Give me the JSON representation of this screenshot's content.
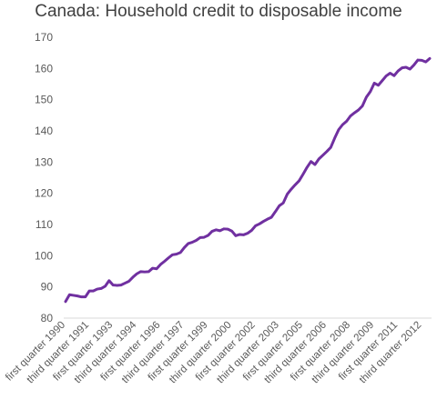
{
  "chart_data": {
    "type": "line",
    "title": "Canada: Household credit to disposable income",
    "xlabel": "",
    "ylabel": "",
    "ylim": [
      80,
      170
    ],
    "yticks": [
      80,
      90,
      100,
      110,
      120,
      130,
      140,
      150,
      160,
      170
    ],
    "grid": false,
    "legend": "none",
    "colors": {
      "line": "#7030a0",
      "text": "#595959",
      "title": "#404040"
    },
    "x_tick_labels": [
      {
        "index": 0,
        "label": "first quarter 1990"
      },
      {
        "index": 6,
        "label": "third quarter 1991"
      },
      {
        "index": 12,
        "label": "first quarter 1993"
      },
      {
        "index": 18,
        "label": "third quarter 1994"
      },
      {
        "index": 24,
        "label": "first quarter 1996"
      },
      {
        "index": 30,
        "label": "third quarter 1997"
      },
      {
        "index": 36,
        "label": "first quarter 1999"
      },
      {
        "index": 42,
        "label": "third quarter 2000"
      },
      {
        "index": 48,
        "label": "first quarter 2002"
      },
      {
        "index": 54,
        "label": "third quarter 2003"
      },
      {
        "index": 60,
        "label": "first quarter 2005"
      },
      {
        "index": 66,
        "label": "third quarter 2006"
      },
      {
        "index": 72,
        "label": "first quarter 2008"
      },
      {
        "index": 78,
        "label": "third quarter 2009"
      },
      {
        "index": 84,
        "label": "first quarter 2011"
      },
      {
        "index": 90,
        "label": "third quarter 2012"
      }
    ],
    "series": [
      {
        "values": [
          85.3,
          87.5,
          87.3,
          87.1,
          86.8,
          86.8,
          88.7,
          88.7,
          89.3,
          89.5,
          90.2,
          92.0,
          90.6,
          90.5,
          90.6,
          91.2,
          91.8,
          93.1,
          94.2,
          94.9,
          94.8,
          94.9,
          96.0,
          95.8,
          97.2,
          98.2,
          99.3,
          100.3,
          100.5,
          101.0,
          102.6,
          103.9,
          104.3,
          104.9,
          105.8,
          105.9,
          106.5,
          107.8,
          108.3,
          108.0,
          108.6,
          108.5,
          107.9,
          106.4,
          106.8,
          106.7,
          107.2,
          108.1,
          109.6,
          110.2,
          111.0,
          111.7,
          112.3,
          114.1,
          116.0,
          116.9,
          119.7,
          121.3,
          122.7,
          124.0,
          126.1,
          128.3,
          130.2,
          129.2,
          131.0,
          132.2,
          133.4,
          134.7,
          137.7,
          140.4,
          142.0,
          143.1,
          144.8,
          145.8,
          146.7,
          148.0,
          150.8,
          152.6,
          155.3,
          154.6,
          156.1,
          157.6,
          158.5,
          157.7,
          159.2,
          160.2,
          160.4,
          159.8,
          161.1,
          162.7,
          162.6,
          162.1,
          163.2
        ]
      }
    ]
  }
}
